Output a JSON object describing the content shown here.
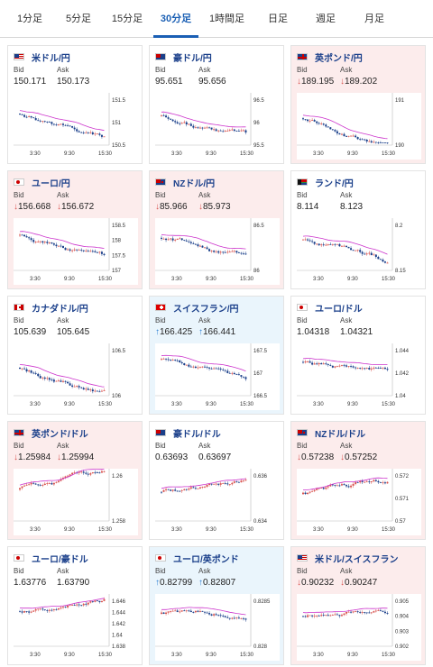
{
  "tabs": [
    {
      "label": "1分足",
      "active": false
    },
    {
      "label": "5分足",
      "active": false
    },
    {
      "label": "15分足",
      "active": false
    },
    {
      "label": "30分足",
      "active": true
    },
    {
      "label": "1時間足",
      "active": false
    },
    {
      "label": "日足",
      "active": false
    },
    {
      "label": "週足",
      "active": false
    },
    {
      "label": "月足",
      "active": false
    }
  ],
  "labels": {
    "bid": "Bid",
    "ask": "Ask"
  },
  "x_ticks": [
    "3:30",
    "9:30",
    "15:30"
  ],
  "colors": {
    "up": "#2a7fd4",
    "down": "#d9534f",
    "ma": "#cc33cc",
    "ma2": "#3399cc",
    "title": "#1a3f8a"
  },
  "cards": [
    {
      "pair": "米ドル/円",
      "flag": "us-flag-icon",
      "trend": "none",
      "bid": "150.171",
      "ask": "150.173",
      "y_ticks": [
        "151.5",
        "151",
        "150.5"
      ]
    },
    {
      "pair": "豪ドル/円",
      "flag": "au-flag-icon",
      "trend": "none",
      "bid": "95.651",
      "ask": "95.656",
      "y_ticks": [
        "96.5",
        "96",
        "95.5"
      ]
    },
    {
      "pair": "英ポンド/円",
      "flag": "gb-flag-icon",
      "trend": "down",
      "bid": "189.195",
      "ask": "189.202",
      "y_ticks": [
        "191",
        "190"
      ]
    },
    {
      "pair": "ユーロ/円",
      "flag": "eu-flag-icon",
      "trend": "down",
      "bid": "156.668",
      "ask": "156.672",
      "y_ticks": [
        "158.5",
        "158",
        "157.5",
        "157"
      ]
    },
    {
      "pair": "NZドル/円",
      "flag": "nz-flag-icon",
      "trend": "down",
      "bid": "85.966",
      "ask": "85.973",
      "y_ticks": [
        "86.5",
        "86"
      ]
    },
    {
      "pair": "ランド/円",
      "flag": "za-flag-icon",
      "trend": "none",
      "bid": "8.114",
      "ask": "8.123",
      "y_ticks": [
        "8.2",
        "8.15"
      ]
    },
    {
      "pair": "カナダドル/円",
      "flag": "ca-flag-icon",
      "trend": "none",
      "bid": "105.639",
      "ask": "105.645",
      "y_ticks": [
        "106.5",
        "106"
      ]
    },
    {
      "pair": "スイスフラン/円",
      "flag": "ch-flag-icon",
      "trend": "up",
      "bid": "166.425",
      "ask": "166.441",
      "y_ticks": [
        "167.5",
        "167",
        "166.5"
      ]
    },
    {
      "pair": "ユーロ/ドル",
      "flag": "eu-flag-icon",
      "trend": "none",
      "bid": "1.04318",
      "ask": "1.04321",
      "y_ticks": [
        "1.044",
        "1.042",
        "1.04"
      ]
    },
    {
      "pair": "英ポンド/ドル",
      "flag": "gb-flag-icon",
      "trend": "down",
      "bid": "1.25984",
      "ask": "1.25994",
      "y_ticks": [
        "1.26",
        "1.258"
      ]
    },
    {
      "pair": "豪ドル/ドル",
      "flag": "au-flag-icon",
      "trend": "none",
      "bid": "0.63693",
      "ask": "0.63697",
      "y_ticks": [
        "0.636",
        "0.634"
      ]
    },
    {
      "pair": "NZドル/ドル",
      "flag": "nz-flag-icon",
      "trend": "down",
      "bid": "0.57238",
      "ask": "0.57252",
      "y_ticks": [
        "0.572",
        "0.571",
        "0.57"
      ]
    },
    {
      "pair": "ユーロ/豪ドル",
      "flag": "eu-flag-icon",
      "trend": "none",
      "bid": "1.63776",
      "ask": "1.63790",
      "y_ticks": [
        "1.646",
        "1.644",
        "1.642",
        "1.64",
        "1.638"
      ]
    },
    {
      "pair": "ユーロ/英ポンド",
      "flag": "eu-flag-icon",
      "trend": "up",
      "bid": "0.82799",
      "ask": "0.82807",
      "y_ticks": [
        "0.8285",
        "0.828"
      ]
    },
    {
      "pair": "米ドル/スイスフラン",
      "flag": "us-flag-icon",
      "trend": "down",
      "bid": "0.90232",
      "ask": "0.90247",
      "y_ticks": [
        "0.905",
        "0.904",
        "0.903",
        "0.902"
      ]
    }
  ],
  "arrows": {
    "up": "↑",
    "down": "↓"
  }
}
